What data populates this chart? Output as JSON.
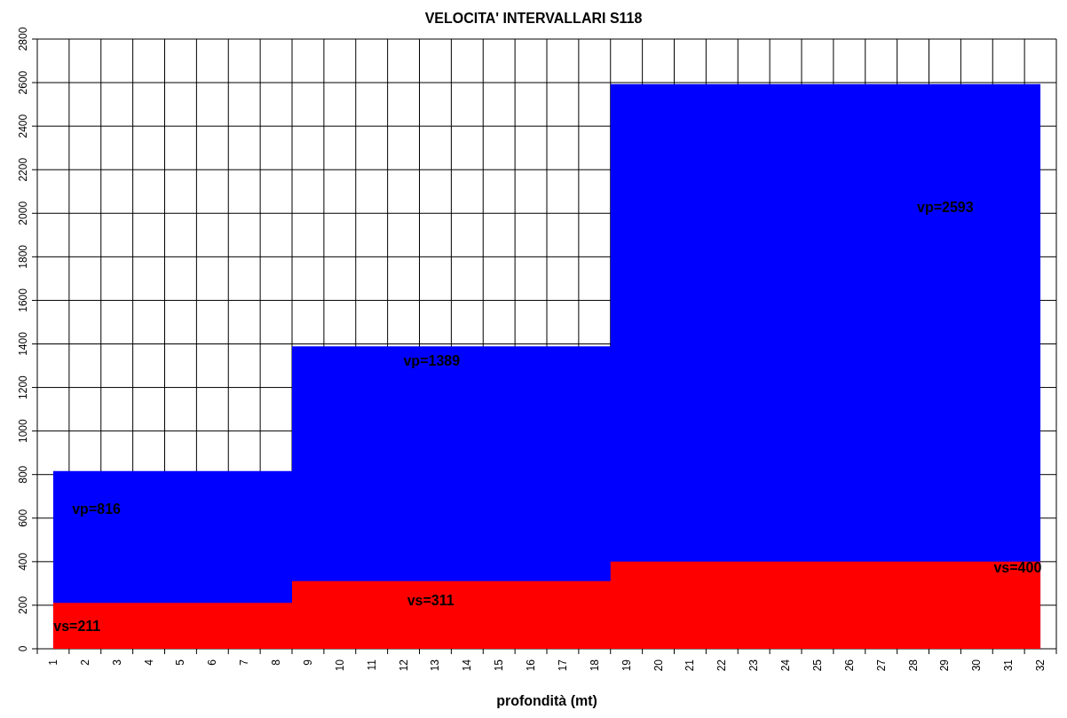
{
  "chart_data": {
    "type": "area",
    "title": "VELOCITA' INTERVALLARI S118",
    "xlabel": "profondità (mt)",
    "categories": [
      "1",
      "2",
      "3",
      "4",
      "5",
      "6",
      "7",
      "8",
      "9",
      "10",
      "11",
      "12",
      "13",
      "14",
      "15",
      "16",
      "17",
      "18",
      "19",
      "20",
      "21",
      "22",
      "23",
      "24",
      "25",
      "26",
      "27",
      "28",
      "29",
      "30",
      "31",
      "32"
    ],
    "series": [
      {
        "color": "#0000ff",
        "values": [
          816,
          816,
          816,
          816,
          816,
          816,
          816,
          816,
          1389,
          1389,
          1389,
          1389,
          1389,
          1389,
          1389,
          1389,
          1389,
          1389,
          2593,
          2593,
          2593,
          2593,
          2593,
          2593,
          2593,
          2593,
          2593,
          2593,
          2593,
          2593,
          2593,
          2593
        ]
      },
      {
        "color": "#ff0000",
        "values": [
          211,
          211,
          211,
          211,
          211,
          211,
          211,
          211,
          311,
          311,
          311,
          311,
          311,
          311,
          311,
          311,
          311,
          311,
          400,
          400,
          400,
          400,
          400,
          400,
          400,
          400,
          400,
          400,
          400,
          400,
          400,
          400
        ]
      }
    ],
    "ylim": [
      0,
      2800
    ],
    "yticks": [
      0,
      200,
      400,
      600,
      800,
      1000,
      1200,
      1400,
      1600,
      1800,
      2000,
      2200,
      2400,
      2600,
      2800
    ],
    "grid": true,
    "annotations": [
      "vp=816",
      "vp=1389",
      "vp=2593",
      "vs=211",
      "vs=311",
      "vs=400"
    ]
  }
}
